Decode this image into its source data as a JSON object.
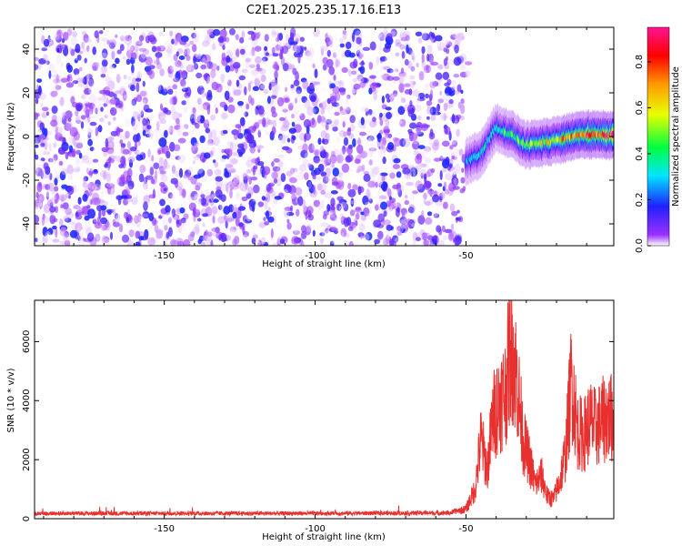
{
  "figure_title": "C2E1.2025.235.17.16.E13",
  "chart_data": [
    {
      "type": "heatmap",
      "title": "C2E1.2025.235.17.16.E13",
      "xlabel": "Height of straight line (km)",
      "ylabel": "Frequency (Hz)",
      "xlim": [
        -193,
        -1
      ],
      "ylim": [
        -50,
        50
      ],
      "x_ticks": [
        -150,
        -100,
        -50
      ],
      "y_ticks": [
        -40,
        -20,
        0,
        20,
        40
      ],
      "colorbar": {
        "label": "Normalized spectral amplitude",
        "range": [
          0,
          0.95
        ],
        "ticks": [
          "0.0",
          "0.2",
          "0.4",
          "0.6",
          "0.8"
        ],
        "tick_values": [
          0.0,
          0.2,
          0.4,
          0.6,
          0.8
        ],
        "colormap": [
          "#ffffff",
          "#9b30ff",
          "#2020ff",
          "#00e5ff",
          "#00ff40",
          "#e8ff00",
          "#ff9900",
          "#ff0000",
          "#ff1493"
        ]
      },
      "noise_region": {
        "x_from": -193,
        "x_to": -50,
        "y_from": -50,
        "y_to": 48,
        "amplitude_range": [
          0.0,
          0.25
        ]
      },
      "signal_track": {
        "x": [
          -50,
          -45,
          -40,
          -35,
          -30,
          -25,
          -20,
          -15,
          -10,
          -5,
          -1
        ],
        "y": [
          -12,
          -8,
          4,
          1,
          -4,
          -3,
          -2,
          0,
          1,
          1,
          0
        ],
        "peak_amplitude": [
          0.3,
          0.4,
          0.45,
          0.5,
          0.55,
          0.65,
          0.7,
          0.78,
          0.85,
          0.9,
          0.9
        ]
      }
    },
    {
      "type": "line",
      "xlabel": "Height of straight line (km)",
      "ylabel": "SNR (10 * v/v)",
      "xlim": [
        -193,
        -1
      ],
      "ylim": [
        0,
        7400
      ],
      "x_ticks": [
        -150,
        -100,
        -50
      ],
      "y_ticks": [
        0,
        2000,
        4000,
        6000
      ],
      "color": "#e8302e",
      "series": [
        {
          "name": "SNR",
          "x": [
            -193,
            -150,
            -100,
            -55,
            -50,
            -47,
            -45,
            -43,
            -41,
            -39,
            -37,
            -35,
            -33,
            -31,
            -29,
            -27,
            -25,
            -23,
            -21,
            -19,
            -17,
            -15,
            -13,
            -11,
            -9,
            -7,
            -5,
            -3,
            -1
          ],
          "y": [
            200,
            200,
            200,
            220,
            400,
            1200,
            3300,
            2000,
            4200,
            4800,
            5200,
            7300,
            5600,
            3200,
            2400,
            1400,
            1800,
            900,
            800,
            1500,
            2700,
            5800,
            3600,
            3400,
            4000,
            3700,
            4000,
            4200,
            4100
          ]
        }
      ]
    }
  ]
}
